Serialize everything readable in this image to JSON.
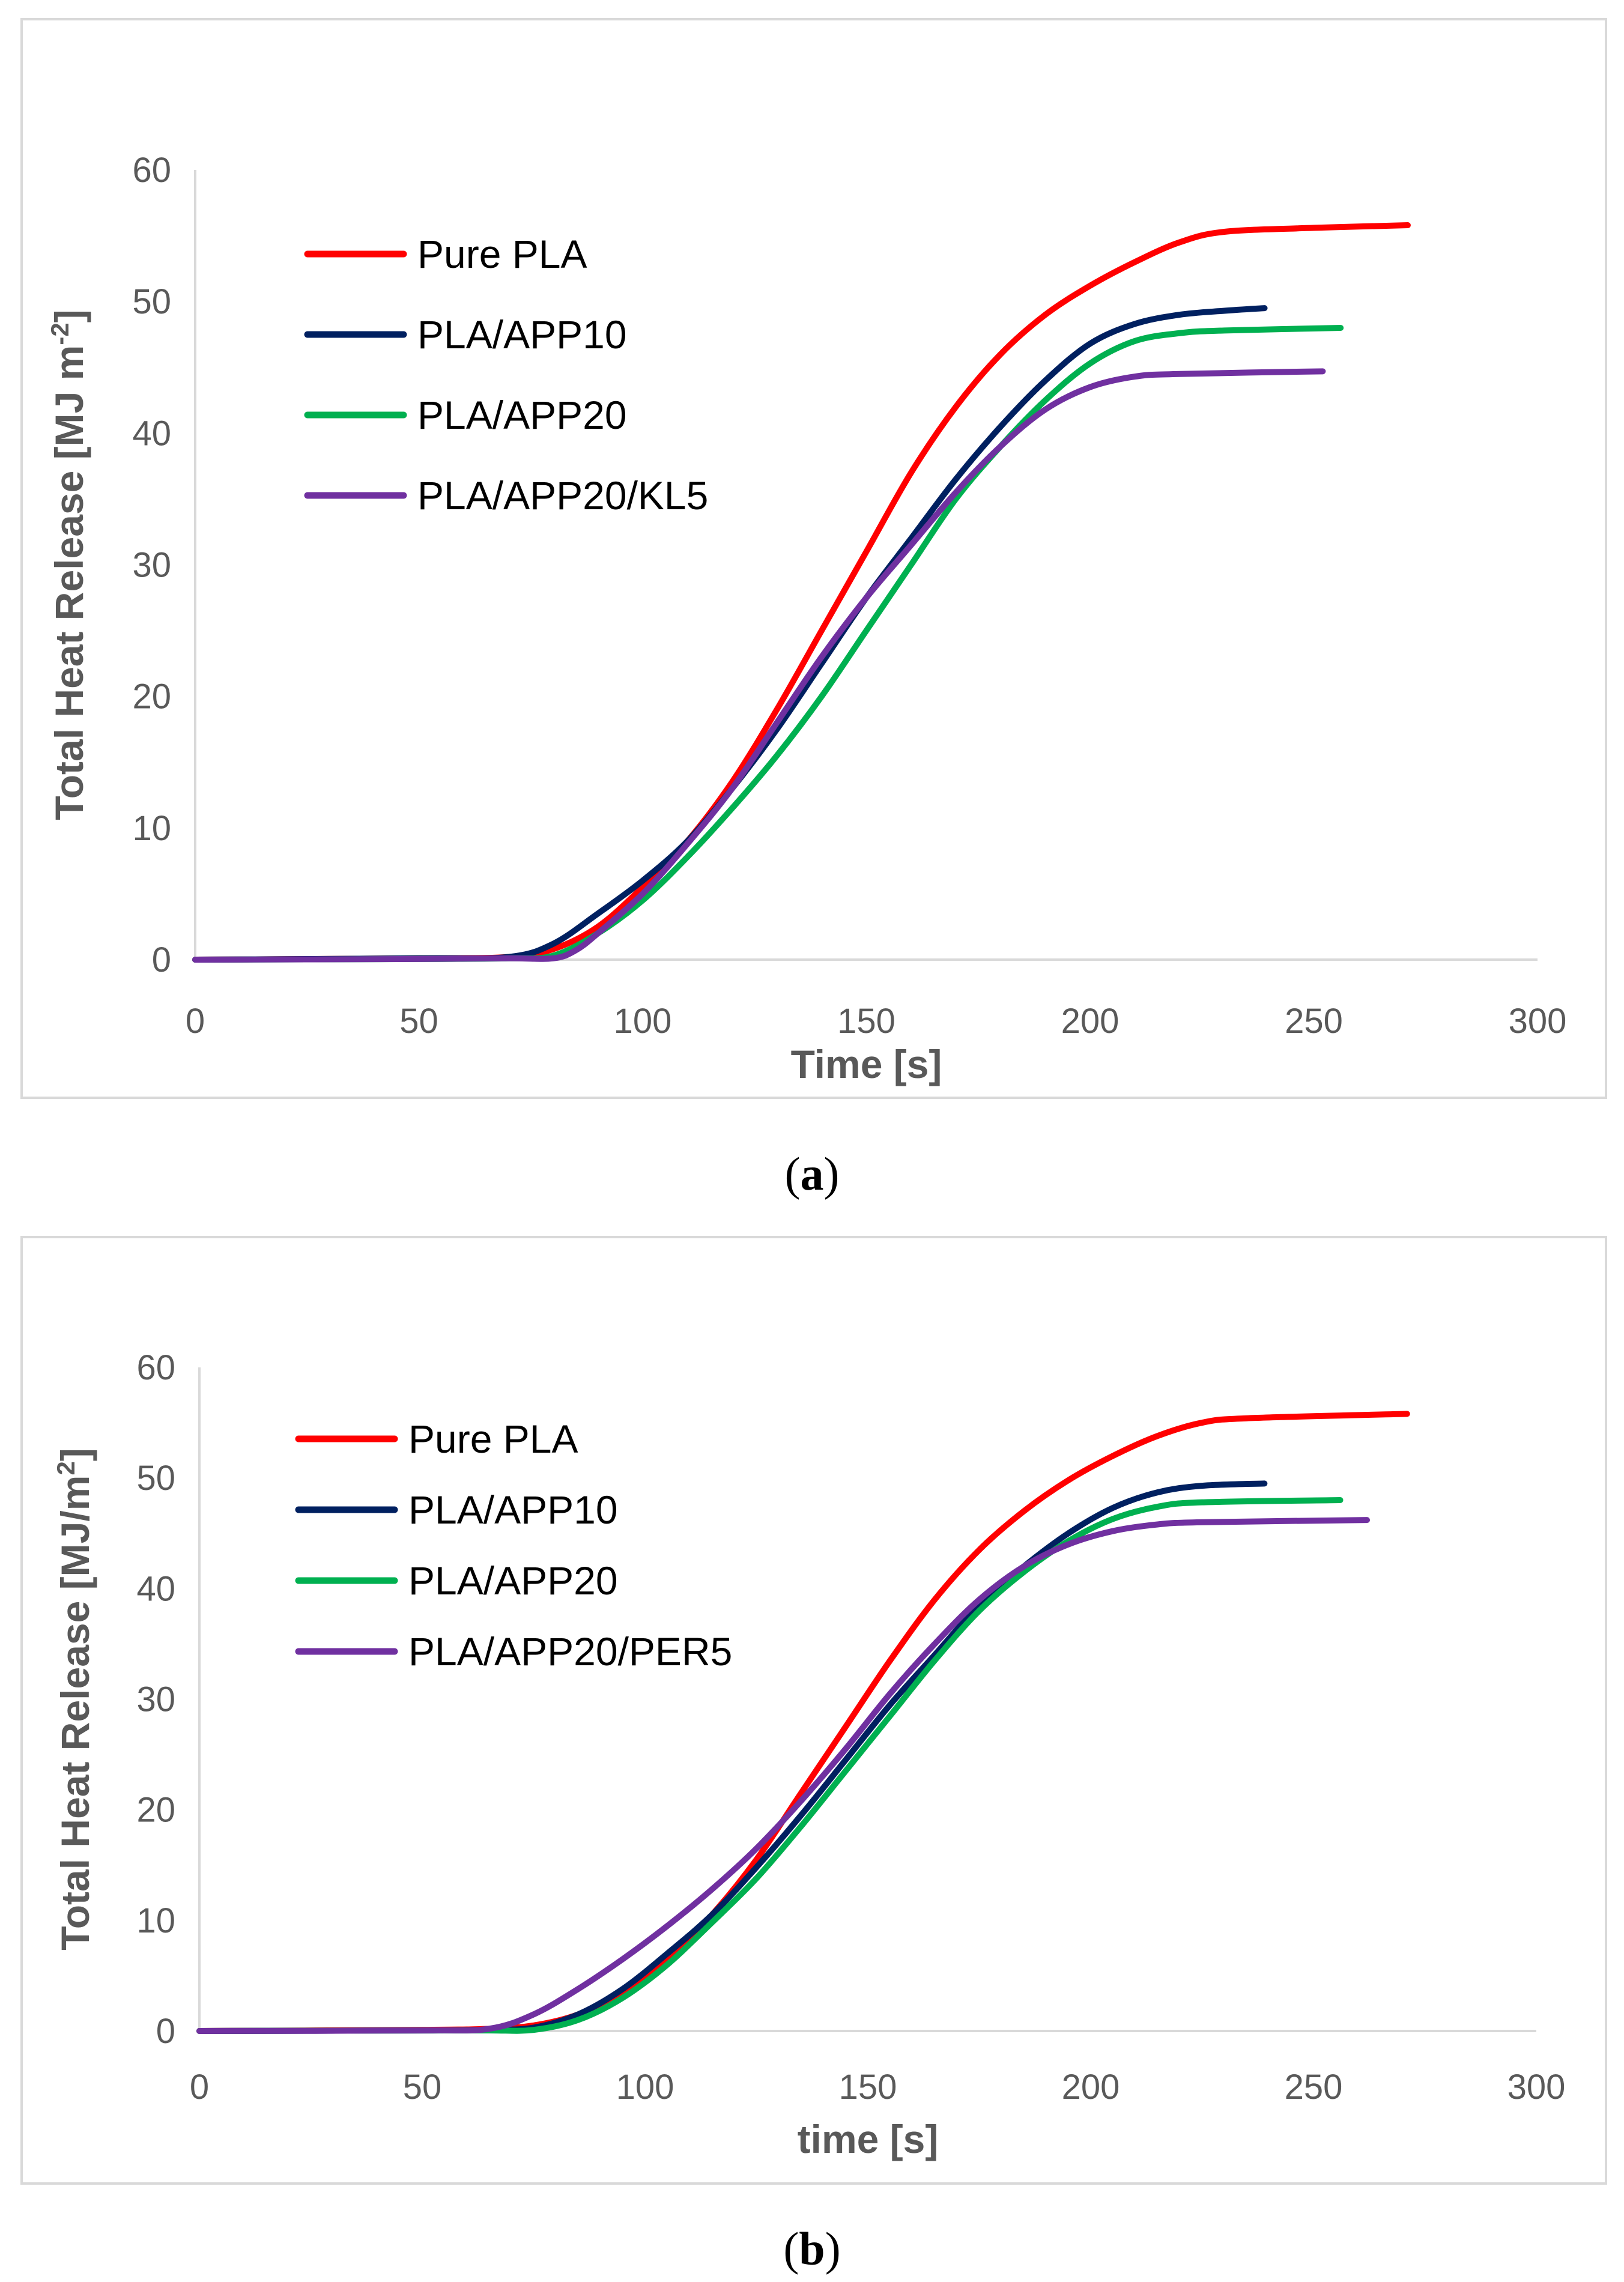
{
  "chart_data": [
    {
      "type": "line",
      "panel": "a",
      "caption": "a",
      "xlabel": "Time [s]",
      "ylabel": "Total Heat Release [MJ m",
      "ylabel_sup": "-2",
      "ylabel_end": "]",
      "xlim": [
        0,
        300
      ],
      "ylim": [
        0,
        60
      ],
      "xticks": [
        0,
        50,
        100,
        150,
        200,
        250,
        300
      ],
      "yticks": [
        0,
        10,
        20,
        30,
        40,
        50,
        60
      ],
      "grid": false,
      "legend_position": "top-left",
      "series": [
        {
          "name": "Pure PLA",
          "color": "#ff0000",
          "x": [
            0,
            50,
            70,
            80,
            90,
            100,
            110,
            120,
            130,
            140,
            150,
            160,
            170,
            180,
            190,
            200,
            210,
            220,
            230,
            250,
            271
          ],
          "y": [
            0,
            0.1,
            0.2,
            0.8,
            2.5,
            5.5,
            9.0,
            13.5,
            19.0,
            25.0,
            31.0,
            37.0,
            42.0,
            46.0,
            49.0,
            51.2,
            53.0,
            54.5,
            55.3,
            55.6,
            55.8
          ]
        },
        {
          "name": "PLA/APP10",
          "color": "#002060",
          "x": [
            0,
            50,
            70,
            80,
            90,
            100,
            110,
            120,
            130,
            140,
            150,
            160,
            170,
            180,
            190,
            200,
            210,
            220,
            230,
            239
          ],
          "y": [
            0,
            0.1,
            0.2,
            1.2,
            3.5,
            6.0,
            9.0,
            13.0,
            17.5,
            22.5,
            27.5,
            32.0,
            36.5,
            40.5,
            44.0,
            46.8,
            48.3,
            49.0,
            49.3,
            49.5
          ]
        },
        {
          "name": "PLA/APP20",
          "color": "#00b050",
          "x": [
            0,
            50,
            70,
            80,
            90,
            100,
            110,
            120,
            130,
            140,
            150,
            160,
            170,
            180,
            190,
            200,
            210,
            220,
            230,
            256
          ],
          "y": [
            0,
            0.05,
            0.1,
            0.3,
            2.0,
            4.5,
            7.8,
            11.5,
            15.5,
            20.0,
            25.0,
            30.0,
            35.0,
            39.0,
            42.5,
            45.3,
            47.0,
            47.6,
            47.8,
            48.0
          ]
        },
        {
          "name": "PLA/APP20/KL5",
          "color": "#7030a0",
          "x": [
            0,
            50,
            70,
            80,
            85,
            90,
            100,
            110,
            120,
            130,
            140,
            150,
            160,
            170,
            180,
            190,
            200,
            210,
            220,
            252
          ],
          "y": [
            0,
            0.05,
            0.1,
            0.1,
            0.7,
            2.0,
            5.0,
            8.8,
            13.0,
            18.0,
            23.0,
            27.5,
            31.5,
            35.5,
            39.0,
            41.8,
            43.5,
            44.3,
            44.5,
            44.7
          ]
        }
      ]
    },
    {
      "type": "line",
      "panel": "b",
      "caption": "b",
      "xlabel": "time [s]",
      "ylabel": "Total Heat Release [MJ/m",
      "ylabel_sup": "2",
      "ylabel_end": "]",
      "xlim": [
        0,
        300
      ],
      "ylim": [
        0,
        60
      ],
      "xticks": [
        0,
        50,
        100,
        150,
        200,
        250,
        300
      ],
      "yticks": [
        0,
        10,
        20,
        30,
        40,
        50,
        60
      ],
      "grid": false,
      "legend_position": "top-left",
      "series": [
        {
          "name": "Pure PLA",
          "color": "#ff0000",
          "x": [
            0,
            50,
            65,
            75,
            85,
            95,
            105,
            115,
            125,
            135,
            145,
            155,
            165,
            175,
            185,
            195,
            205,
            215,
            225,
            235,
            271
          ],
          "y": [
            0,
            0.1,
            0.2,
            0.5,
            1.5,
            3.5,
            6.5,
            10.5,
            15.5,
            21.5,
            27.5,
            33.5,
            39.0,
            43.5,
            47.0,
            49.8,
            52.0,
            53.8,
            55.0,
            55.4,
            55.8
          ]
        },
        {
          "name": "PLA/APP10",
          "color": "#002060",
          "x": [
            0,
            50,
            65,
            75,
            85,
            95,
            105,
            115,
            125,
            135,
            145,
            155,
            165,
            175,
            185,
            195,
            205,
            215,
            225,
            239
          ],
          "y": [
            0,
            0.05,
            0.1,
            0.3,
            1.5,
            3.8,
            7.0,
            10.5,
            14.8,
            19.5,
            24.5,
            29.5,
            34.0,
            38.5,
            42.0,
            45.0,
            47.3,
            48.7,
            49.3,
            49.5
          ]
        },
        {
          "name": "PLA/APP20",
          "color": "#00b050",
          "x": [
            0,
            50,
            65,
            75,
            85,
            95,
            105,
            115,
            125,
            135,
            145,
            155,
            165,
            175,
            185,
            195,
            205,
            215,
            225,
            256
          ],
          "y": [
            0,
            0.05,
            0.05,
            0.1,
            1.0,
            3.0,
            6.0,
            9.8,
            13.8,
            18.5,
            23.5,
            28.5,
            33.5,
            38.0,
            41.5,
            44.3,
            46.3,
            47.4,
            47.8,
            48.0
          ]
        },
        {
          "name": "PLA/APP20/PER5",
          "color": "#7030a0",
          "x": [
            0,
            50,
            65,
            75,
            85,
            95,
            105,
            115,
            125,
            135,
            145,
            155,
            165,
            175,
            185,
            195,
            205,
            215,
            225,
            262
          ],
          "y": [
            0,
            0.05,
            0.2,
            1.5,
            3.8,
            6.5,
            9.5,
            12.8,
            16.5,
            20.8,
            25.5,
            30.5,
            35.0,
            39.0,
            42.0,
            44.0,
            45.2,
            45.8,
            46.0,
            46.2
          ]
        }
      ]
    }
  ]
}
